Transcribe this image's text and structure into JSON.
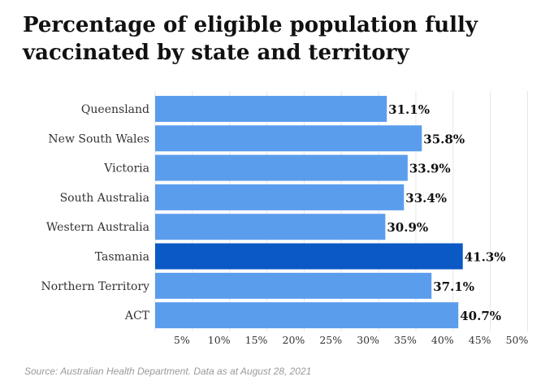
{
  "title": "Percentage of eligible population fully vaccinated by state and territory",
  "source": "Source: Australian Health Department. Data as at August 28, 2021",
  "colors": {
    "bar": "#5b9ded",
    "highlight": "#0a59c4",
    "grid": "#e6e6e6"
  },
  "chart_data": {
    "type": "bar",
    "orientation": "horizontal",
    "categories": [
      "Queensland",
      "New South Wales",
      "Victoria",
      "South Australia",
      "Western Australia",
      "Tasmania",
      "Northern Territory",
      "ACT"
    ],
    "values": [
      31.1,
      35.8,
      33.9,
      33.4,
      30.9,
      41.3,
      37.1,
      40.7
    ],
    "value_labels": [
      "31.1%",
      "35.8%",
      "33.9%",
      "33.4%",
      "30.9%",
      "41.3%",
      "37.1%",
      "40.7%"
    ],
    "highlight": "Tasmania",
    "xlim": [
      0,
      50
    ],
    "xticks": [
      5,
      10,
      15,
      20,
      25,
      30,
      35,
      40,
      45,
      50
    ],
    "xtick_labels": [
      "5%",
      "10%",
      "15%",
      "20%",
      "25%",
      "30%",
      "35%",
      "40%",
      "45%",
      "50%"
    ],
    "grid": true,
    "title": "Percentage of eligible population fully vaccinated by state and territory",
    "xlabel": "",
    "ylabel": ""
  }
}
